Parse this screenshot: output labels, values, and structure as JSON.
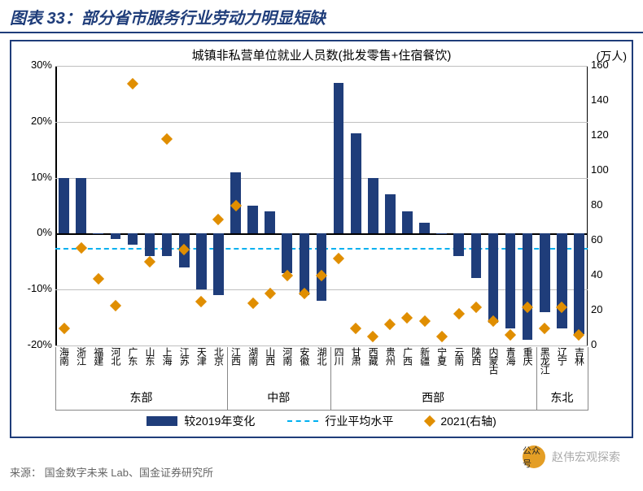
{
  "header": {
    "prefix": "图表 33：",
    "title": "部分省市服务行业劳动力明显短缺"
  },
  "chart": {
    "title": "城镇非私营单位就业人员数(批发零售+住宿餐饮)",
    "right_unit": "(万人)",
    "left_axis": {
      "min": -20,
      "max": 30,
      "step": 10,
      "fmt_suffix": "%"
    },
    "right_axis": {
      "min": 0,
      "max": 160,
      "step": 20
    },
    "industry_avg_pct": -2.5,
    "bar_color": "#1f3d7a",
    "marker_color": "#e08e00",
    "avg_line_color": "#00b0f0",
    "grid_color": "#bfbfbf",
    "background": "#ffffff",
    "categories": [
      {
        "n": "海南",
        "r": "东部",
        "bar": 10,
        "pt": 10
      },
      {
        "n": "浙江",
        "r": "东部",
        "bar": 10,
        "pt": 56
      },
      {
        "n": "福建",
        "r": "东部",
        "bar": 0,
        "pt": 38
      },
      {
        "n": "河北",
        "r": "东部",
        "bar": -1,
        "pt": 23
      },
      {
        "n": "广东",
        "r": "东部",
        "bar": -2,
        "pt": 150
      },
      {
        "n": "山东",
        "r": "东部",
        "bar": -4,
        "pt": 48
      },
      {
        "n": "上海",
        "r": "东部",
        "bar": -4,
        "pt": 118
      },
      {
        "n": "江苏",
        "r": "东部",
        "bar": -6,
        "pt": 55
      },
      {
        "n": "天津",
        "r": "东部",
        "bar": -10,
        "pt": 25
      },
      {
        "n": "北京",
        "r": "东部",
        "bar": -11,
        "pt": 72
      },
      {
        "n": "江西",
        "r": "中部",
        "bar": 11,
        "pt": 80
      },
      {
        "n": "湖南",
        "r": "中部",
        "bar": 5,
        "pt": 24
      },
      {
        "n": "山西",
        "r": "中部",
        "bar": 4,
        "pt": 30
      },
      {
        "n": "河南",
        "r": "中部",
        "bar": -7,
        "pt": 40
      },
      {
        "n": "安徽",
        "r": "中部",
        "bar": -11,
        "pt": 30
      },
      {
        "n": "湖北",
        "r": "中部",
        "bar": -12,
        "pt": 40
      },
      {
        "n": "四川",
        "r": "西部",
        "bar": 27,
        "pt": 50
      },
      {
        "n": "甘肃",
        "r": "西部",
        "bar": 18,
        "pt": 10
      },
      {
        "n": "西藏",
        "r": "西部",
        "bar": 10,
        "pt": 5
      },
      {
        "n": "贵州",
        "r": "西部",
        "bar": 7,
        "pt": 12
      },
      {
        "n": "广西",
        "r": "西部",
        "bar": 4,
        "pt": 16
      },
      {
        "n": "新疆",
        "r": "西部",
        "bar": 2,
        "pt": 14
      },
      {
        "n": "宁夏",
        "r": "西部",
        "bar": 0,
        "pt": 5
      },
      {
        "n": "云南",
        "r": "西部",
        "bar": -4,
        "pt": 18
      },
      {
        "n": "陕西",
        "r": "西部",
        "bar": -8,
        "pt": 22
      },
      {
        "n": "内蒙古",
        "r": "西部",
        "bar": -16,
        "pt": 14
      },
      {
        "n": "青海",
        "r": "西部",
        "bar": -17,
        "pt": 6
      },
      {
        "n": "重庆",
        "r": "西部",
        "bar": -19,
        "pt": 22
      },
      {
        "n": "黑龙江",
        "r": "东北",
        "bar": -14,
        "pt": 10
      },
      {
        "n": "辽宁",
        "r": "东北",
        "bar": -17,
        "pt": 22
      },
      {
        "n": "吉林",
        "r": "东北",
        "bar": -18,
        "pt": 6
      }
    ],
    "regions_order": [
      "东部",
      "中部",
      "西部",
      "东北"
    ],
    "legend": {
      "bar": "较2019年变化",
      "avg": "行业平均水平",
      "pt": "2021(右轴)"
    }
  },
  "footer": {
    "label": "来源：",
    "text": "国金数字未来 Lab、国金证券研究所"
  },
  "watermark": {
    "circle": "公众号",
    "text": "赵伟宏观探索"
  }
}
